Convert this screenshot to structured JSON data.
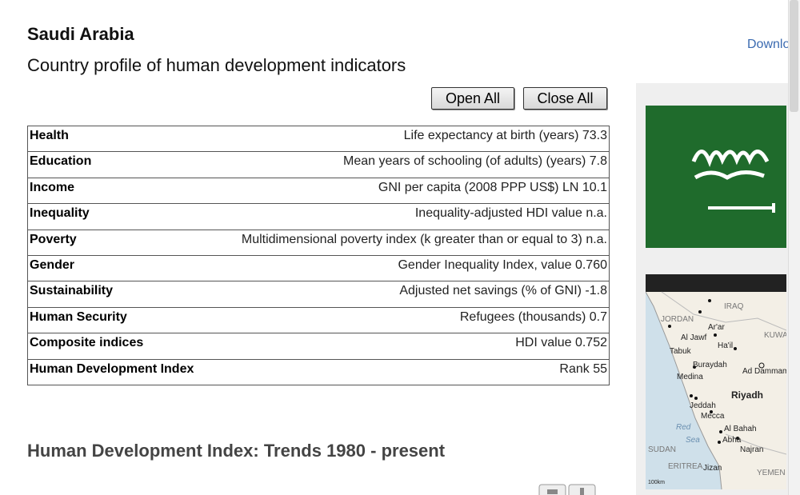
{
  "header": {
    "title": "Saudi Arabia",
    "subtitle": "Country profile of human development indicators",
    "download": "Download"
  },
  "buttons": {
    "open_all": "Open All",
    "close_all": "Close All"
  },
  "table": {
    "rows": [
      [
        "Health",
        "Life expectancy at birth (years)",
        "73.3"
      ],
      [
        "Education",
        "Mean years of schooling (of adults) (years)",
        "7.8"
      ],
      [
        "Income",
        "GNI per capita (2008 PPP US$) LN",
        "10.1"
      ],
      [
        "Inequality",
        "Inequality-adjusted HDI value",
        "n.a."
      ],
      [
        "Poverty",
        "Multidimensional poverty index (k greater than or equal to 3)",
        "n.a."
      ],
      [
        "Gender",
        "Gender Inequality Index, value",
        "0.760"
      ],
      [
        "Sustainability",
        "Adjusted net savings (% of GNI)",
        "-1.8"
      ],
      [
        "Human Security",
        "Refugees (thousands)",
        "0.7"
      ],
      [
        "Composite indices",
        "HDI value",
        "0.752"
      ],
      [
        "Human Development Index",
        "Rank",
        "55"
      ]
    ]
  },
  "section": {
    "title": "Human Development Index: Trends 1980 - present"
  },
  "map": {
    "labels": [
      "IRAQ",
      "JORDAN",
      "Ar'ar",
      "Al Jawf",
      "KUWAIT",
      "Ha'il",
      "Tabuk",
      "Buraydah",
      "Ad Dammam",
      "Medina",
      "Riyadh",
      "Jeddah",
      "Mecca",
      "Red",
      "Sea",
      "Al Bahah",
      "Abha",
      "SUDAN",
      "Najran",
      "ERITREA",
      "Jizan",
      "YEMEN",
      "100km"
    ]
  }
}
